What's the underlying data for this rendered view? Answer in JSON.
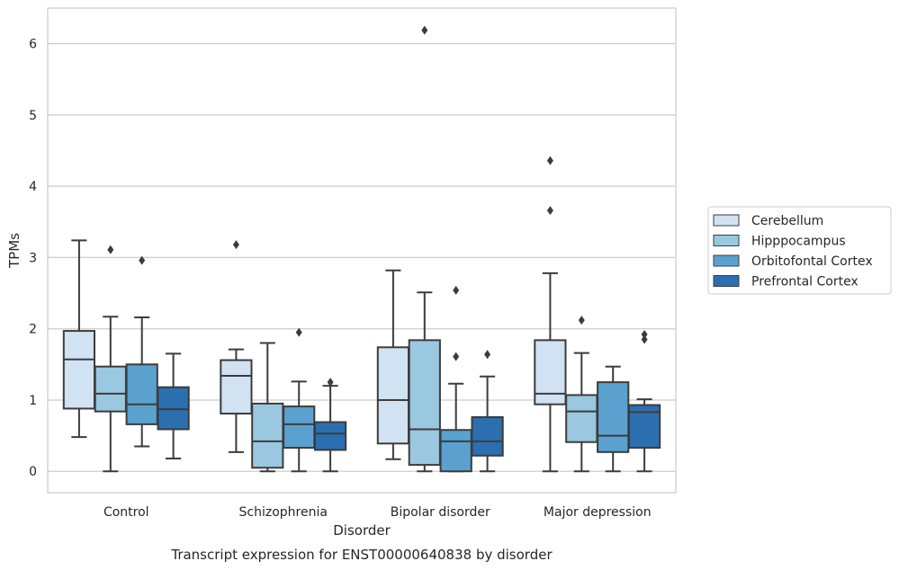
{
  "chart_data": {
    "type": "box",
    "title": "",
    "caption": "Transcript expression for ENST00000640838 by disorder",
    "xlabel": "Disorder",
    "ylabel": "TPMs",
    "ylim": [
      -0.3,
      6.5
    ],
    "yticks": [
      0,
      1,
      2,
      3,
      4,
      5,
      6
    ],
    "grid": "horizontal",
    "legend_position": "right",
    "categories": [
      "Control",
      "Schizophrenia",
      "Bipolar disorder",
      "Major depression"
    ],
    "series": [
      {
        "name": "Cerebellum",
        "color": "#d1e2f2",
        "boxes": [
          {
            "whisker_low": 0.48,
            "q1": 0.88,
            "median": 1.57,
            "q3": 1.97,
            "whisker_high": 3.24,
            "outliers": []
          },
          {
            "whisker_low": 0.27,
            "q1": 0.81,
            "median": 1.34,
            "q3": 1.56,
            "whisker_high": 1.71,
            "outliers": [
              3.18
            ]
          },
          {
            "whisker_low": 0.17,
            "q1": 0.39,
            "median": 1.0,
            "q3": 1.74,
            "whisker_high": 2.82,
            "outliers": []
          },
          {
            "whisker_low": 0.0,
            "q1": 0.94,
            "median": 1.09,
            "q3": 1.84,
            "whisker_high": 2.78,
            "outliers": [
              3.66,
              4.36
            ]
          }
        ]
      },
      {
        "name": "Hipppocampus",
        "color": "#9ac8e0",
        "boxes": [
          {
            "whisker_low": 0.0,
            "q1": 0.84,
            "median": 1.09,
            "q3": 1.47,
            "whisker_high": 2.17,
            "outliers": [
              3.11
            ]
          },
          {
            "whisker_low": 0.0,
            "q1": 0.05,
            "median": 0.42,
            "q3": 0.95,
            "whisker_high": 1.8,
            "outliers": []
          },
          {
            "whisker_low": 0.0,
            "q1": 0.09,
            "median": 0.59,
            "q3": 1.84,
            "whisker_high": 2.51,
            "outliers": [
              6.19
            ]
          },
          {
            "whisker_low": 0.0,
            "q1": 0.41,
            "median": 0.84,
            "q3": 1.07,
            "whisker_high": 1.66,
            "outliers": [
              2.12
            ]
          }
        ]
      },
      {
        "name": "Orbitofontal Cortex",
        "color": "#5aa1cf",
        "boxes": [
          {
            "whisker_low": 0.35,
            "q1": 0.66,
            "median": 0.94,
            "q3": 1.5,
            "whisker_high": 2.16,
            "outliers": [
              2.96
            ]
          },
          {
            "whisker_low": 0.0,
            "q1": 0.33,
            "median": 0.66,
            "q3": 0.91,
            "whisker_high": 1.26,
            "outliers": [
              1.95
            ]
          },
          {
            "whisker_low": 0.0,
            "q1": 0.0,
            "median": 0.42,
            "q3": 0.58,
            "whisker_high": 1.23,
            "outliers": [
              1.61,
              2.54
            ]
          },
          {
            "whisker_low": 0.0,
            "q1": 0.27,
            "median": 0.5,
            "q3": 1.25,
            "whisker_high": 1.47,
            "outliers": []
          }
        ]
      },
      {
        "name": "Prefrontal Cortex",
        "color": "#2c6fb0",
        "boxes": [
          {
            "whisker_low": 0.18,
            "q1": 0.59,
            "median": 0.87,
            "q3": 1.18,
            "whisker_high": 1.65,
            "outliers": []
          },
          {
            "whisker_low": 0.0,
            "q1": 0.3,
            "median": 0.53,
            "q3": 0.69,
            "whisker_high": 1.2,
            "outliers": [
              1.25
            ]
          },
          {
            "whisker_low": 0.0,
            "q1": 0.22,
            "median": 0.42,
            "q3": 0.76,
            "whisker_high": 1.33,
            "outliers": [
              1.64
            ]
          },
          {
            "whisker_low": 0.0,
            "q1": 0.33,
            "median": 0.83,
            "q3": 0.93,
            "whisker_high": 1.01,
            "outliers": [
              1.85,
              1.92
            ]
          }
        ]
      }
    ]
  }
}
